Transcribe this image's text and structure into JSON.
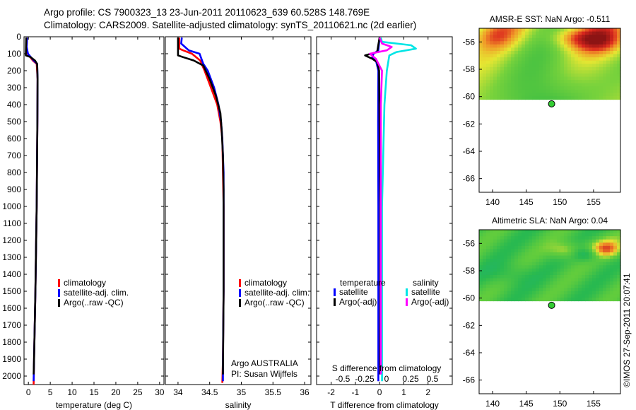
{
  "header": {
    "line1": "Argo profile: CS 7900323_13 23-Jun-2011 20110623_639 60.528S 148.769E",
    "line2": "Climatology: CARS2009. Satellite-adjusted climatology: synTS_20110621.nc (2d earlier)"
  },
  "credit": "©IMOS 27-Sep-2011 20:07:41",
  "colors": {
    "climatology": "#ff0000",
    "satellite": "#0000ff",
    "argo": "#000000",
    "satellite_salinity": "#00e5e5",
    "argo_salinity": "#ff00ff",
    "float_marker": "#33cc33"
  },
  "chart_data": [
    {
      "type": "line",
      "panel": "temperature",
      "xlabel": "temperature (deg C)",
      "ylabel": "",
      "xlim": [
        -1,
        31
      ],
      "xticks": [
        "0",
        "5",
        "10",
        "15",
        "20",
        "25",
        "30"
      ],
      "xtick_values": [
        0,
        5,
        10,
        15,
        20,
        25,
        30
      ],
      "ylim": [
        2050,
        0
      ],
      "yticks": [
        "0",
        "100",
        "200",
        "300",
        "400",
        "500",
        "600",
        "700",
        "800",
        "900",
        "1000",
        "1100",
        "1200",
        "1300",
        "1400",
        "1500",
        "1600",
        "1700",
        "1800",
        "1900",
        "2000"
      ],
      "ytick_values": [
        0,
        100,
        200,
        300,
        400,
        500,
        600,
        700,
        800,
        900,
        1000,
        1100,
        1200,
        1300,
        1400,
        1500,
        1600,
        1700,
        1800,
        1900,
        2000
      ],
      "legend": [
        "climatology",
        "satellite-adj. clim.",
        "Argo(..raw -QC)"
      ],
      "series": [
        {
          "name": "climatology",
          "color": "#ff0000",
          "points": [
            [
              -0.3,
              5
            ],
            [
              -0.4,
              60
            ],
            [
              -0.2,
              100
            ],
            [
              1.0,
              140
            ],
            [
              1.9,
              160
            ],
            [
              2.1,
              250
            ],
            [
              2.05,
              500
            ],
            [
              1.9,
              1000
            ],
            [
              1.6,
              1500
            ],
            [
              1.3,
              1900
            ],
            [
              1.2,
              2050
            ]
          ]
        },
        {
          "name": "satellite-adj. clim.",
          "color": "#0000ff",
          "points": [
            [
              -0.3,
              5
            ],
            [
              -0.4,
              60
            ],
            [
              -0.1,
              100
            ],
            [
              1.2,
              140
            ],
            [
              2.0,
              160
            ],
            [
              2.1,
              250
            ],
            [
              2.05,
              500
            ],
            [
              1.9,
              1000
            ],
            [
              1.6,
              1500
            ],
            [
              1.3,
              1900
            ],
            [
              1.2,
              2030
            ]
          ]
        },
        {
          "name": "Argo(..raw -QC)",
          "color": "#000000",
          "points": [
            [
              -0.5,
              5
            ],
            [
              -0.6,
              110
            ],
            [
              0.5,
              120
            ],
            [
              1.5,
              140
            ],
            [
              2.0,
              160
            ],
            [
              2.1,
              250
            ],
            [
              2.05,
              500
            ],
            [
              1.9,
              1000
            ],
            [
              1.6,
              1500
            ],
            [
              1.3,
              1900
            ],
            [
              1.2,
              1990
            ]
          ]
        }
      ]
    },
    {
      "type": "line",
      "panel": "salinity",
      "xlabel": "salinity",
      "xlim": [
        33.8,
        36.1
      ],
      "xticks": [
        "34",
        "34.5",
        "35",
        "35.5",
        "36"
      ],
      "xtick_values": [
        34,
        34.5,
        35,
        35.5,
        36
      ],
      "ylim": [
        2050,
        0
      ],
      "legend": [
        "climatology",
        "satellite-adj. clim.",
        "Argo(..raw -QC)"
      ],
      "annotation": [
        "Argo AUSTRALIA",
        "PI: Susan Wijffels"
      ],
      "series": [
        {
          "name": "climatology",
          "color": "#ff0000",
          "points": [
            [
              34.02,
              5
            ],
            [
              34.02,
              70
            ],
            [
              34.08,
              80
            ],
            [
              34.22,
              100
            ],
            [
              34.35,
              140
            ],
            [
              34.42,
              200
            ],
            [
              34.52,
              300
            ],
            [
              34.62,
              400
            ],
            [
              34.67,
              500
            ],
            [
              34.7,
              600
            ],
            [
              34.71,
              800
            ],
            [
              34.72,
              1000
            ],
            [
              34.72,
              1500
            ],
            [
              34.71,
              1900
            ],
            [
              34.7,
              2040
            ]
          ]
        },
        {
          "name": "satellite-adj. clim.",
          "color": "#0000ff",
          "points": [
            [
              34.06,
              5
            ],
            [
              34.05,
              40
            ],
            [
              34.17,
              80
            ],
            [
              34.34,
              100
            ],
            [
              34.4,
              160
            ],
            [
              34.47,
              200
            ],
            [
              34.57,
              300
            ],
            [
              34.64,
              400
            ],
            [
              34.68,
              500
            ],
            [
              34.7,
              600
            ],
            [
              34.72,
              800
            ],
            [
              34.72,
              1000
            ],
            [
              34.72,
              1500
            ],
            [
              34.71,
              1900
            ],
            [
              34.71,
              2030
            ]
          ]
        },
        {
          "name": "Argo(..raw -QC)",
          "color": "#000000",
          "points": [
            [
              34.0,
              5
            ],
            [
              34.0,
              110
            ],
            [
              34.08,
              120
            ],
            [
              34.25,
              140
            ],
            [
              34.4,
              170
            ],
            [
              34.5,
              250
            ],
            [
              34.6,
              350
            ],
            [
              34.67,
              450
            ],
            [
              34.69,
              550
            ],
            [
              34.71,
              700
            ],
            [
              34.72,
              900
            ],
            [
              34.72,
              1100
            ],
            [
              34.72,
              1500
            ],
            [
              34.71,
              1990
            ]
          ]
        }
      ]
    },
    {
      "type": "line",
      "panel": "difference",
      "xlabel": "T difference from climatology",
      "xlabel_top": "S difference from climatology",
      "xlim": [
        -2.6,
        3.0
      ],
      "xticks": [
        "-2",
        "-1",
        "0",
        "1",
        "2"
      ],
      "xtick_values": [
        -2,
        -1,
        0,
        1,
        2
      ],
      "xticks_top": [
        "-0.5",
        "-0.25",
        "0",
        "0.25",
        "0.5"
      ],
      "ylim": [
        2050,
        0
      ],
      "legend_temperature_title": "temperature",
      "legend_salinity_title": "salinity",
      "legend": [
        "satellite",
        "Argo(-adj)",
        "satellite",
        "Argo(-adj)"
      ],
      "series": [
        {
          "name": "T satellite",
          "color": "#0000ff",
          "points": [
            [
              0,
              5
            ],
            [
              -0.05,
              80
            ],
            [
              -0.25,
              100
            ],
            [
              -0.3,
              120
            ],
            [
              -0.15,
              140
            ],
            [
              -0.05,
              200
            ],
            [
              -0.06,
              500
            ],
            [
              -0.05,
              1000
            ],
            [
              -0.05,
              1500
            ],
            [
              -0.05,
              2030
            ]
          ]
        },
        {
          "name": "T Argo(-adj)",
          "color": "#000000",
          "points": [
            [
              0,
              5
            ],
            [
              -0.1,
              90
            ],
            [
              -0.6,
              110
            ],
            [
              -0.3,
              130
            ],
            [
              -0.1,
              150
            ],
            [
              -0.02,
              200
            ],
            [
              0,
              500
            ],
            [
              0.03,
              1000
            ],
            [
              0.03,
              1500
            ],
            [
              0.02,
              1990
            ]
          ]
        },
        {
          "name": "S satellite",
          "color": "#00e5e5",
          "points": [
            [
              0.05,
              5
            ],
            [
              0.1,
              30
            ],
            [
              1.3,
              50
            ],
            [
              1.5,
              70
            ],
            [
              0.7,
              90
            ],
            [
              0.4,
              110
            ],
            [
              0.3,
              200
            ],
            [
              0.2,
              400
            ],
            [
              0.15,
              700
            ],
            [
              0.1,
              1000
            ],
            [
              0.1,
              1500
            ],
            [
              0.1,
              2030
            ]
          ]
        },
        {
          "name": "S Argo(-adj)",
          "color": "#ff00ff",
          "points": [
            [
              0,
              5
            ],
            [
              0.1,
              40
            ],
            [
              0.5,
              60
            ],
            [
              0.3,
              80
            ],
            [
              -0.4,
              100
            ],
            [
              -0.15,
              130
            ],
            [
              0.1,
              200
            ],
            [
              0.05,
              400
            ],
            [
              0.05,
              1000
            ],
            [
              0.05,
              1500
            ],
            [
              0.05,
              1990
            ]
          ]
        }
      ]
    },
    {
      "type": "heatmap",
      "panel": "sst_map",
      "title": "AMSR-E SST: NaN Argo: -0.511",
      "xlim": [
        138,
        159
      ],
      "ylim": [
        -67,
        -55
      ],
      "xticks": [
        "140",
        "145",
        "150",
        "155"
      ],
      "xtick_values": [
        140,
        145,
        150,
        155
      ],
      "yticks": [
        "-56",
        "-58",
        "-60",
        "-62",
        "-64",
        "-66"
      ],
      "ytick_values": [
        -56,
        -58,
        -60,
        -62,
        -64,
        -66
      ],
      "data_bottom_lat": -60.2,
      "float_position": [
        148.769,
        -60.528
      ]
    },
    {
      "type": "heatmap",
      "panel": "sla_map",
      "title": "Altimetric SLA: NaN Argo: 0.04",
      "xlim": [
        138,
        159
      ],
      "ylim": [
        -67,
        -55
      ],
      "xticks": [
        "140",
        "145",
        "150",
        "155"
      ],
      "xtick_values": [
        140,
        145,
        150,
        155
      ],
      "yticks": [
        "-56",
        "-58",
        "-60",
        "-62",
        "-64",
        "-66"
      ],
      "ytick_values": [
        -56,
        -58,
        -60,
        -62,
        -64,
        -66
      ],
      "data_bottom_lat": -60.2,
      "float_position": [
        148.769,
        -60.528
      ]
    }
  ]
}
